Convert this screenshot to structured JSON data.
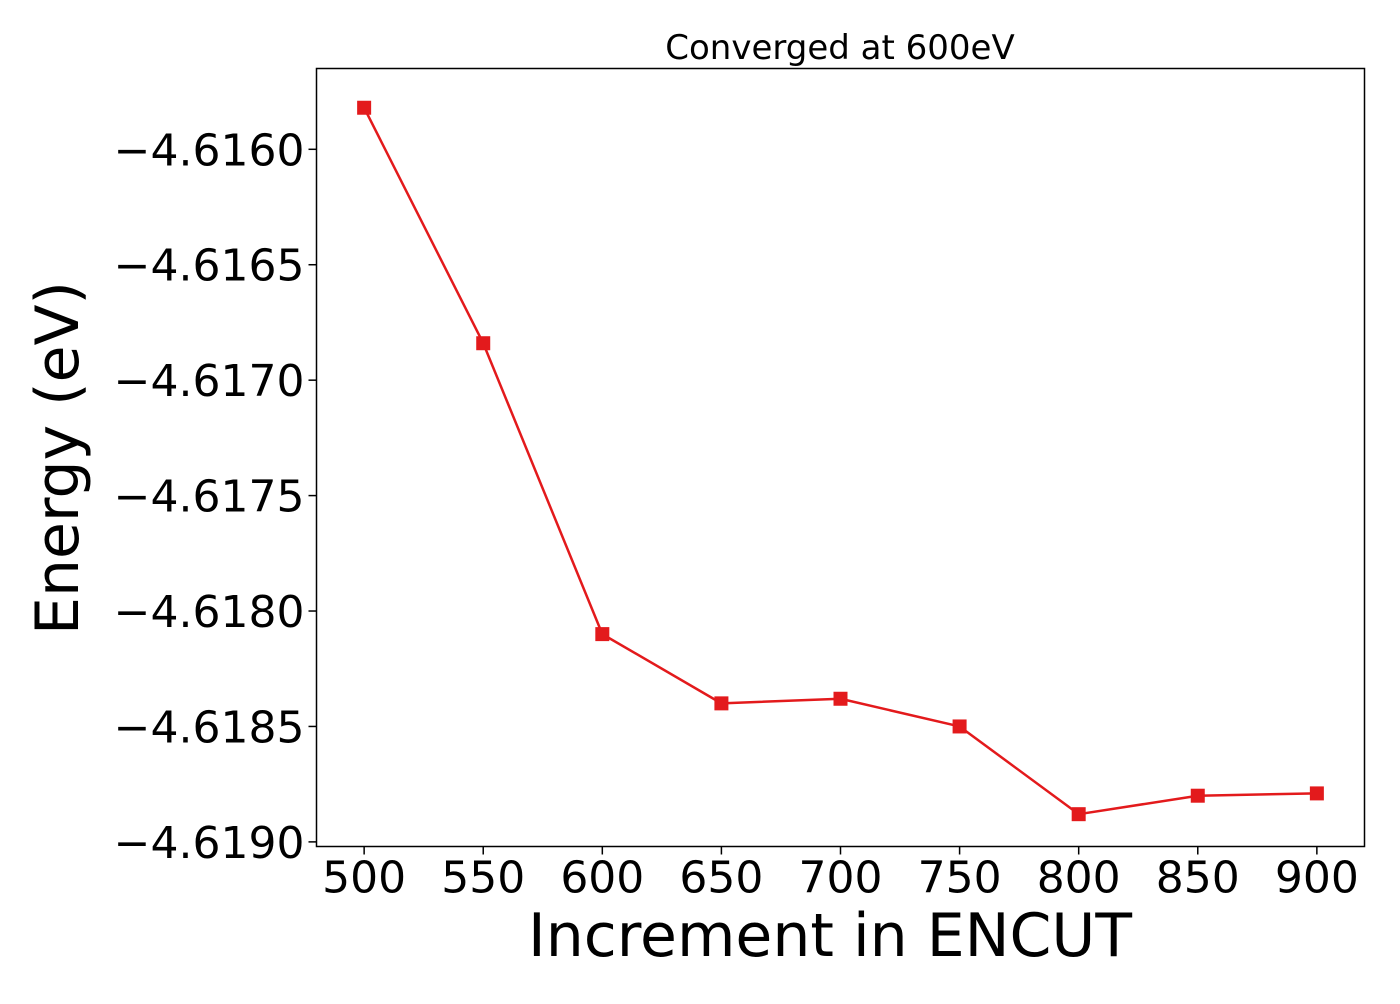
{
  "chart_data": {
    "type": "line",
    "title": "Converged at 600eV",
    "xlabel": "Increment in ENCUT",
    "ylabel": "Energy (eV)",
    "x": [
      500,
      550,
      600,
      650,
      700,
      750,
      800,
      850,
      900
    ],
    "xticks": [
      "500",
      "550",
      "600",
      "650",
      "700",
      "750",
      "800",
      "850",
      "900"
    ],
    "xlim": [
      480,
      920
    ],
    "yticks": [
      {
        "value": -4.616,
        "label": "−4.6160"
      },
      {
        "value": -4.6165,
        "label": "−4.6165"
      },
      {
        "value": -4.617,
        "label": "−4.6170"
      },
      {
        "value": -4.6175,
        "label": "−4.6175"
      },
      {
        "value": -4.618,
        "label": "−4.6180"
      },
      {
        "value": -4.6185,
        "label": "−4.6185"
      },
      {
        "value": -4.619,
        "label": "−4.6190"
      }
    ],
    "ylim": [
      -4.61902,
      -4.61565
    ],
    "series": [
      {
        "values": [
          -4.61582,
          -4.61684,
          -4.6181,
          -4.6184,
          -4.61838,
          -4.6185,
          -4.61888,
          -4.6188,
          -4.61879
        ],
        "color": "#e31a1c",
        "marker": "square"
      }
    ],
    "grid": false,
    "legend": "none"
  }
}
